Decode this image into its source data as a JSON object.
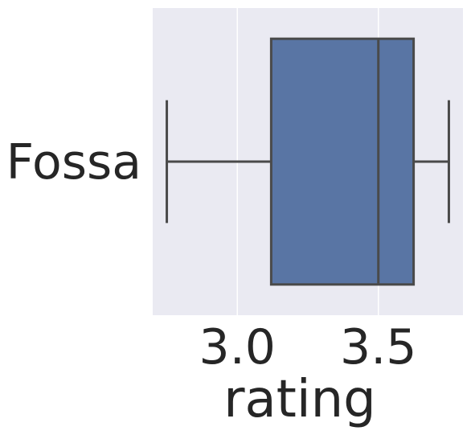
{
  "chart_data": {
    "type": "box",
    "orientation": "horizontal",
    "title": "",
    "xlabel": "rating",
    "ylabel": "",
    "xlim": [
      2.7,
      3.8
    ],
    "xticks": [
      3.0,
      3.5
    ],
    "xtick_labels": [
      "3.0",
      "3.5"
    ],
    "grid": true,
    "categories": [
      "Fossa"
    ],
    "boxes": [
      {
        "category": "Fossa",
        "whisker_low": 2.75,
        "q1": 3.12,
        "median": 3.5,
        "q3": 3.625,
        "whisker_high": 3.75
      }
    ]
  },
  "colors": {
    "plot_background": "#eaeaf2",
    "grid": "#ffffff",
    "box_fill": "#5975a4",
    "box_edge": "#4a4a4a",
    "text": "#262626"
  }
}
